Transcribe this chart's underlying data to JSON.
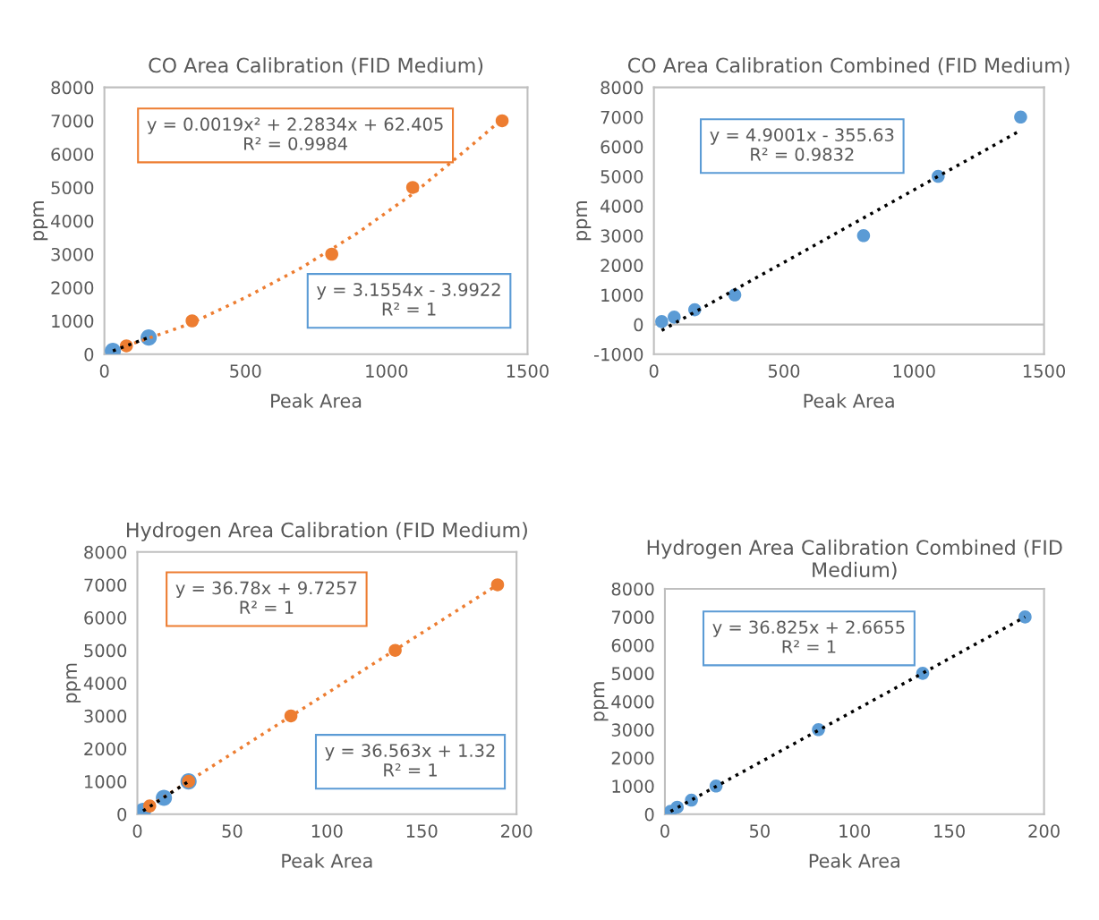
{
  "chart_data": [
    {
      "type": "scatter",
      "title": "CO Area Calibration (FID Medium)",
      "xlabel": "Peak Area",
      "ylabel": "ppm",
      "xlim": [
        0,
        1500
      ],
      "xticks": [
        0,
        500,
        1000,
        1500
      ],
      "ylim": [
        0,
        8000
      ],
      "yticks": [
        0,
        1000,
        2000,
        3000,
        4000,
        5000,
        6000,
        7000,
        8000
      ],
      "marker": "circle",
      "grid": false,
      "series": [
        {
          "color": "#ed7d31",
          "x": [
            78,
            311,
            806,
            1093,
            1410
          ],
          "values": [
            250,
            1000,
            3000,
            5000,
            7000
          ]
        },
        {
          "color": "#5b9bd5",
          "x": [
            30,
            157
          ],
          "values": [
            100,
            500
          ]
        },
        {
          "type": "line",
          "marker": "none",
          "line_style": "dotted",
          "color": "#ed7d31",
          "x": [
            78,
            300,
            500,
            700,
            900,
            1100,
            1300,
            1410
          ],
          "values": [
            250,
            900,
            1700,
            2600,
            3650,
            4850,
            6250,
            7050
          ]
        },
        {
          "type": "line",
          "marker": "none",
          "line_style": "dotted",
          "color": "#000000",
          "x": [
            30,
            157
          ],
          "values": [
            100,
            500
          ]
        }
      ],
      "annotations": [
        "y = 0.0019x² + 2.2834x + 62.405\nR² = 0.9984",
        "y = 3.1554x - 3.9922\nR² = 1"
      ]
    },
    {
      "type": "scatter",
      "title": "CO Area Calibration Combined (FID Medium)",
      "xlabel": "Peak Area",
      "ylabel": "ppm",
      "xlim": [
        0,
        1500
      ],
      "xticks": [
        0,
        500,
        1000,
        1500
      ],
      "ylim": [
        -1000,
        8000
      ],
      "yticks": [
        -1000,
        0,
        1000,
        2000,
        3000,
        4000,
        5000,
        6000,
        7000,
        8000
      ],
      "marker": "circle",
      "grid": false,
      "ref_lines": [
        {
          "axis": "y",
          "value": 0,
          "color": "#bfbfbf"
        }
      ],
      "series": [
        {
          "color": "#5b9bd5",
          "x": [
            30,
            78,
            157,
            311,
            806,
            1093,
            1410
          ],
          "values": [
            100,
            250,
            500,
            1000,
            3000,
            5000,
            7000
          ]
        },
        {
          "type": "line",
          "marker": "none",
          "line_style": "dotted",
          "color": "#000000",
          "x": [
            30,
            1410
          ],
          "values": [
            -200,
            6550
          ]
        }
      ],
      "annotations": [
        "y = 4.9001x - 355.63\nR² = 0.9832"
      ]
    },
    {
      "type": "scatter",
      "title": "Hydrogen Area Calibration (FID Medium)",
      "xlabel": "Peak Area",
      "ylabel": "ppm",
      "xlim": [
        0,
        200
      ],
      "xticks": [
        0,
        50,
        100,
        150,
        200
      ],
      "ylim": [
        0,
        8000
      ],
      "yticks": [
        0,
        1000,
        2000,
        3000,
        4000,
        5000,
        6000,
        7000,
        8000
      ],
      "marker": "circle",
      "grid": false,
      "series": [
        {
          "color": "#ed7d31",
          "x": [
            6.5,
            27,
            81,
            136,
            190
          ],
          "values": [
            250,
            1000,
            3000,
            5000,
            7000
          ]
        },
        {
          "color": "#5b9bd5",
          "x": [
            3,
            14,
            27
          ],
          "values": [
            100,
            500,
            1000
          ]
        },
        {
          "type": "line",
          "marker": "none",
          "line_style": "dotted",
          "color": "#ed7d31",
          "x": [
            6.5,
            190
          ],
          "values": [
            250,
            7000
          ]
        },
        {
          "type": "line",
          "marker": "none",
          "line_style": "dotted",
          "color": "#000000",
          "x": [
            3,
            27
          ],
          "values": [
            100,
            1000
          ]
        }
      ],
      "annotations": [
        "y = 36.78x + 9.7257\nR² = 1",
        "y = 36.563x + 1.32\nR² = 1"
      ]
    },
    {
      "type": "scatter",
      "title": "Hydrogen Area Calibration Combined (FID Medium)",
      "xlabel": "Peak Area",
      "ylabel": "ppm",
      "xlim": [
        0,
        200
      ],
      "xticks": [
        0,
        50,
        100,
        150,
        200
      ],
      "ylim": [
        0,
        8000
      ],
      "yticks": [
        0,
        1000,
        2000,
        3000,
        4000,
        5000,
        6000,
        7000,
        8000
      ],
      "marker": "circle",
      "grid": false,
      "series": [
        {
          "color": "#5b9bd5",
          "x": [
            3,
            6.5,
            14,
            27,
            81,
            136,
            190
          ],
          "values": [
            100,
            250,
            500,
            1000,
            3000,
            5000,
            7000
          ]
        },
        {
          "type": "line",
          "marker": "none",
          "line_style": "dotted",
          "color": "#000000",
          "x": [
            3,
            190
          ],
          "values": [
            100,
            7000
          ]
        }
      ],
      "annotations": [
        "y = 36.825x + 2.6655\nR² = 1"
      ]
    }
  ]
}
